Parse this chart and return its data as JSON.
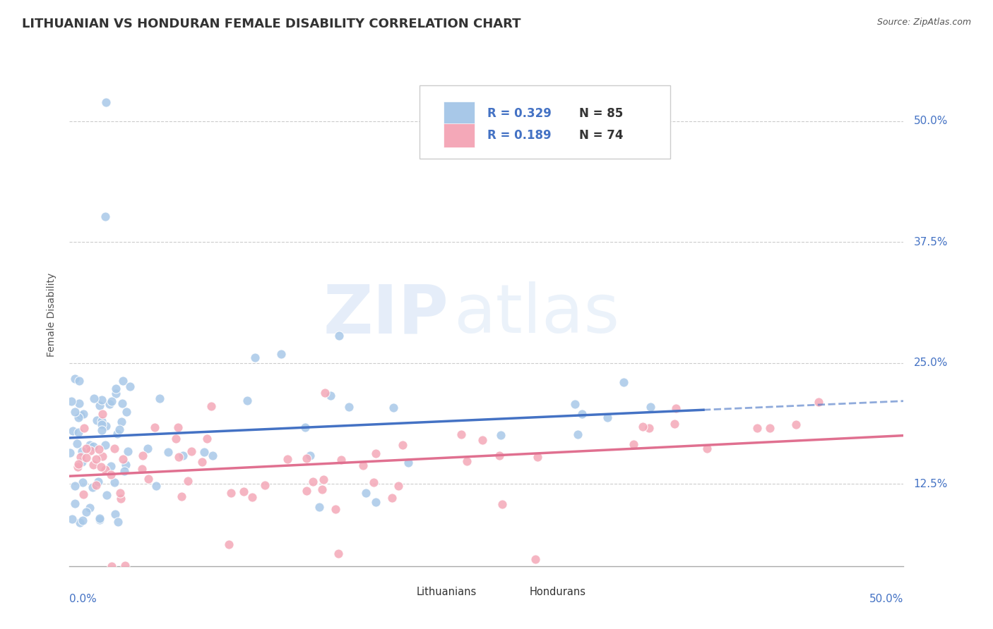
{
  "title": "LITHUANIAN VS HONDURAN FEMALE DISABILITY CORRELATION CHART",
  "source": "Source: ZipAtlas.com",
  "ylabel": "Female Disability",
  "ytick_labels": [
    "12.5%",
    "25.0%",
    "37.5%",
    "50.0%"
  ],
  "ytick_values": [
    0.125,
    0.25,
    0.375,
    0.5
  ],
  "xmin": 0.0,
  "xmax": 0.5,
  "ymin": 0.04,
  "ymax": 0.56,
  "r_lithuanian": 0.329,
  "n_lithuanian": 85,
  "r_honduran": 0.189,
  "n_honduran": 74,
  "scatter_color_lithuanian": "#a8c8e8",
  "scatter_color_honduran": "#f4a8b8",
  "line_color_lithuanian": "#4472c4",
  "line_color_honduran": "#e07090",
  "watermark_zip_color": "#b0c8e0",
  "watermark_atlas_color": "#c0d4ec",
  "background_color": "#ffffff",
  "grid_color": "#cccccc",
  "title_color": "#333333",
  "title_fontsize": 13,
  "axis_label_color": "#4472c4",
  "legend_r_color": "#4472c4",
  "source_color": "#555555",
  "ylabel_color": "#555555"
}
